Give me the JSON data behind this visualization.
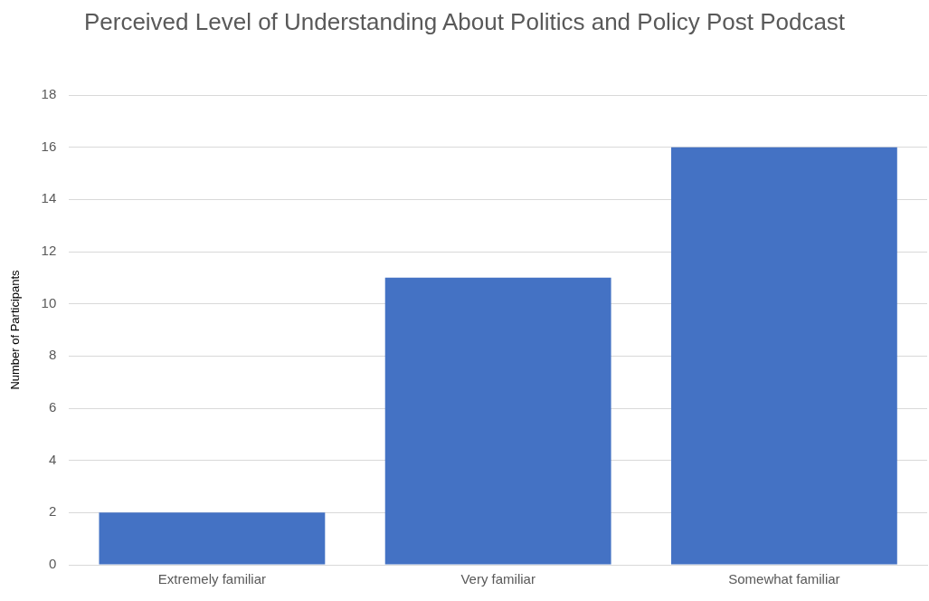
{
  "chart_data": {
    "type": "bar",
    "title": "Perceived Level of Understanding About Politics and Policy Post Podcast",
    "ylabel": "Number of Participants",
    "categories": [
      "Extremely familiar",
      "Very familiar",
      "Somewhat familiar"
    ],
    "values": [
      2,
      11,
      16
    ],
    "color": "#4472c4",
    "ylim": [
      0,
      18
    ],
    "yticks": [
      0,
      2,
      4,
      6,
      8,
      10,
      12,
      14,
      16,
      18
    ],
    "grid": "y"
  }
}
